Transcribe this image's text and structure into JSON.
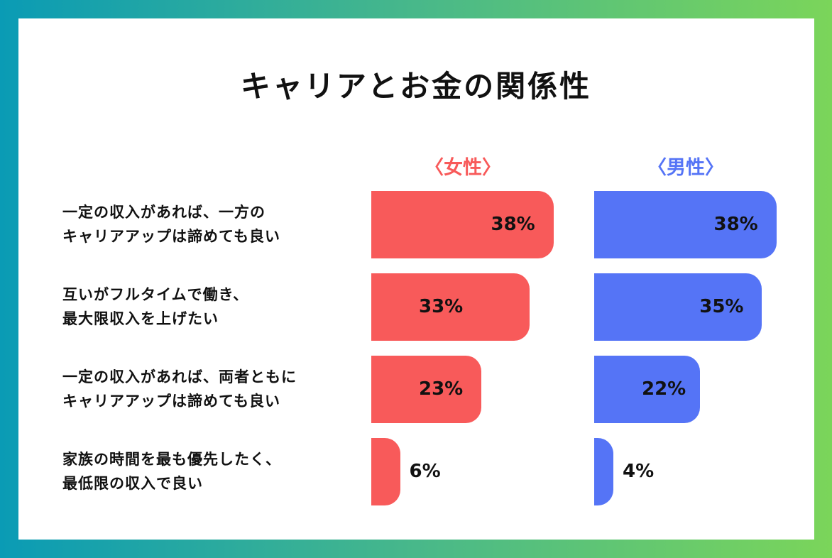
{
  "chart_data": {
    "type": "bar",
    "orientation": "horizontal",
    "title": "キャリアとお金の関係性",
    "categories": [
      "一定の収入があれば、一方の\nキャリアアップは諦めても良い",
      "互いがフルタイムで働き、\n最大限収入を上げたい",
      "一定の収入があれば、両者ともに\nキャリアアップは諦めても良い",
      "家族の時間を最も優先したく、\n最低限の収入で良い"
    ],
    "series": [
      {
        "name": "〈女性〉",
        "color": "#f85a5a",
        "values": [
          38,
          33,
          23,
          6
        ],
        "value_labels": [
          "38%",
          "33%",
          "23%",
          "6%"
        ]
      },
      {
        "name": "〈男性〉",
        "color": "#5574f6",
        "values": [
          38,
          35,
          22,
          4
        ],
        "value_labels": [
          "38%",
          "35%",
          "22%",
          "4%"
        ]
      }
    ]
  }
}
